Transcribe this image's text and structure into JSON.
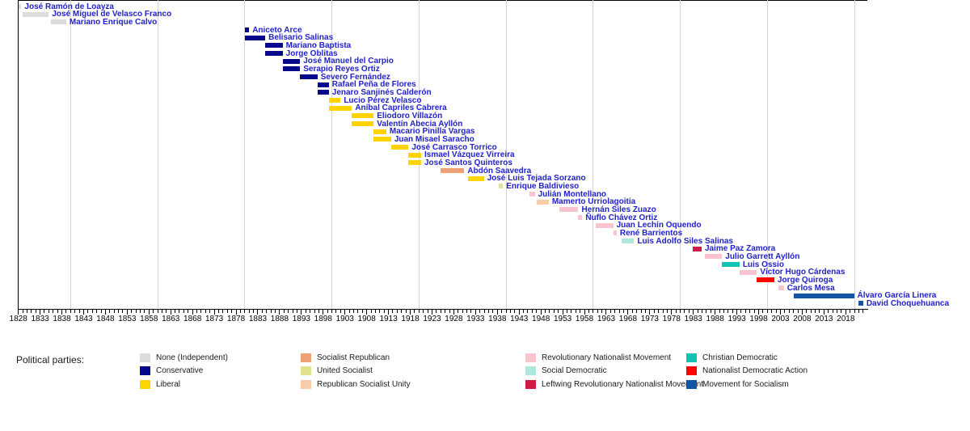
{
  "chart_data": {
    "type": "timeline",
    "x_axis": {
      "min_year": 1828,
      "tick_end_year": 2022,
      "tick_label_years": [
        1828,
        1833,
        1838,
        1843,
        1848,
        1853,
        1858,
        1863,
        1868,
        1873,
        1878,
        1883,
        1888,
        1893,
        1898,
        1903,
        1908,
        1913,
        1918,
        1923,
        1928,
        1933,
        1938,
        1943,
        1948,
        1953,
        1958,
        1963,
        1968,
        1973,
        1978,
        1983,
        1988,
        1993,
        1998,
        2003,
        2008,
        2013,
        2018
      ],
      "gridline_years": [
        1840,
        1860,
        1880,
        1900,
        1920,
        1940,
        1960,
        1980,
        2000,
        2020
      ],
      "grid": true
    },
    "parties": {
      "none": {
        "label": "None (Independent)",
        "color": "#DCDCDC"
      },
      "conservative": {
        "label": "Conservative",
        "color": "#08088C"
      },
      "liberal": {
        "label": "Liberal",
        "color": "#FFD403"
      },
      "socialist_republican": {
        "label": "Socialist Republican",
        "color": "#F0A076"
      },
      "united_socialist": {
        "label": "United Socialist",
        "color": "#E0E28C"
      },
      "republican_socialist_unity": {
        "label": "Republican Socialist Unity",
        "color": "#F8CCA8"
      },
      "revolutionary_nationalist_movement": {
        "label": "Revolutionary Nationalist Movement",
        "color": "#F9C3D0"
      },
      "social_democratic": {
        "label": "Social Democratic",
        "color": "#AEE7DC"
      },
      "leftwing_revolutionary_nationalist_movement": {
        "label": "Leftwing Revolutionary Nationalist Movement",
        "color": "#CE1A45"
      },
      "christian_democratic": {
        "label": "Christian Democratic",
        "color": "#12C3B4"
      },
      "nationalist_democratic_action": {
        "label": "Nationalist Democratic Action",
        "color": "#FB0400"
      },
      "movement_for_socialism": {
        "label": "Movement for Socialism",
        "color": "#1355A5"
      }
    },
    "people": [
      {
        "name": "José Ramón de Loayza",
        "party": "none",
        "start": 1828.0,
        "end": 1828.7
      },
      {
        "name": "José Miguel de Velasco Franco",
        "party": "none",
        "start": 1829.0,
        "end": 1835.0
      },
      {
        "name": "Mariano Enrique Calvo",
        "party": "none",
        "start": 1835.5,
        "end": 1839.0
      },
      {
        "name": "Aniceto Arce",
        "party": "conservative",
        "start": 1880.0,
        "end": 1881.0
      },
      {
        "name": "Belisario Salinas",
        "party": "conservative",
        "start": 1880.0,
        "end": 1884.7
      },
      {
        "name": "Mariano Baptista",
        "party": "conservative",
        "start": 1884.7,
        "end": 1888.7
      },
      {
        "name": "Jorge Oblitas",
        "party": "conservative",
        "start": 1884.7,
        "end": 1888.7
      },
      {
        "name": "José Manuel del Carpio",
        "party": "conservative",
        "start": 1888.7,
        "end": 1892.7
      },
      {
        "name": "Serapio Reyes Ortiz",
        "party": "conservative",
        "start": 1888.7,
        "end": 1892.7
      },
      {
        "name": "Severo Fernández",
        "party": "conservative",
        "start": 1892.7,
        "end": 1896.7
      },
      {
        "name": "Rafael Peña de Flores",
        "party": "conservative",
        "start": 1896.7,
        "end": 1899.3
      },
      {
        "name": "Jenaro Sanjinés Calderón",
        "party": "conservative",
        "start": 1896.7,
        "end": 1899.3
      },
      {
        "name": "Lucio Pérez Velasco",
        "party": "liberal",
        "start": 1899.3,
        "end": 1902.0
      },
      {
        "name": "Aníbal Capriles Cabrera",
        "party": "liberal",
        "start": 1899.3,
        "end": 1904.6
      },
      {
        "name": "Eliodoro Villazón",
        "party": "liberal",
        "start": 1904.6,
        "end": 1909.6
      },
      {
        "name": "Valentín Abecia Ayllón",
        "party": "liberal",
        "start": 1904.6,
        "end": 1909.6
      },
      {
        "name": "Macario Pinilla Vargas",
        "party": "liberal",
        "start": 1909.6,
        "end": 1912.5
      },
      {
        "name": "Juan Misael Saracho",
        "party": "liberal",
        "start": 1909.6,
        "end": 1913.6
      },
      {
        "name": "José Carrasco Torrico",
        "party": "liberal",
        "start": 1913.6,
        "end": 1917.6
      },
      {
        "name": "Ismael Vázquez Virreira",
        "party": "liberal",
        "start": 1917.6,
        "end": 1920.5
      },
      {
        "name": "José Santos Quinteros",
        "party": "liberal",
        "start": 1917.6,
        "end": 1920.5
      },
      {
        "name": "Abdón Saavedra",
        "party": "socialist_republican",
        "start": 1925.0,
        "end": 1930.4
      },
      {
        "name": "José Luis Tejada Sorzano",
        "party": "liberal",
        "start": 1931.2,
        "end": 1934.9
      },
      {
        "name": "Enrique Baldivieso",
        "party": "united_socialist",
        "start": 1938.3,
        "end": 1939.3
      },
      {
        "name": "Julián Montellano",
        "party": "revolutionary_nationalist_movement",
        "start": 1945.3,
        "end": 1946.6
      },
      {
        "name": "Mamerto Urriolagoitia",
        "party": "republican_socialist_unity",
        "start": 1947.0,
        "end": 1949.8
      },
      {
        "name": "Hernán Siles Zuazo",
        "party": "revolutionary_nationalist_movement",
        "start": 1952.3,
        "end": 1956.6
      },
      {
        "name": "Ñuflo Chávez Ortiz",
        "party": "revolutionary_nationalist_movement",
        "start": 1956.6,
        "end": 1957.5
      },
      {
        "name": "Juan Lechín Oquendo",
        "party": "revolutionary_nationalist_movement",
        "start": 1960.6,
        "end": 1964.6
      },
      {
        "name": "René Barrientos",
        "party": "revolutionary_nationalist_movement",
        "start": 1964.6,
        "end": 1965.4
      },
      {
        "name": "Luis Adolfo Siles Salinas",
        "party": "social_democratic",
        "start": 1966.6,
        "end": 1969.4
      },
      {
        "name": "Jaime Paz Zamora",
        "party": "leftwing_revolutionary_nationalist_movement",
        "start": 1982.8,
        "end": 1984.9
      },
      {
        "name": "Julio Garrett Ayllón",
        "party": "revolutionary_nationalist_movement",
        "start": 1985.6,
        "end": 1989.6
      },
      {
        "name": "Luis Ossio",
        "party": "christian_democratic",
        "start": 1989.6,
        "end": 1993.6
      },
      {
        "name": "Víctor Hugo Cárdenas",
        "party": "revolutionary_nationalist_movement",
        "start": 1993.6,
        "end": 1997.6
      },
      {
        "name": "Jorge Quiroga",
        "party": "nationalist_democratic_action",
        "start": 1997.6,
        "end": 2001.6
      },
      {
        "name": "Carlos Mesa",
        "party": "revolutionary_nationalist_movement",
        "start": 2002.6,
        "end": 2003.8
      },
      {
        "name": "Álvaro García Linera",
        "party": "movement_for_socialism",
        "start": 2006.1,
        "end": 2019.9
      },
      {
        "name": "David Choquehuanca",
        "party": "movement_for_socialism",
        "start": 2020.9,
        "end": 2022.0
      }
    ],
    "legend": {
      "title": "Political parties:",
      "columns": [
        [
          "none",
          "conservative",
          "liberal"
        ],
        [
          "socialist_republican",
          "united_socialist",
          "republican_socialist_unity"
        ],
        [
          "revolutionary_nationalist_movement",
          "social_democratic",
          "leftwing_revolutionary_nationalist_movement"
        ],
        [
          "christian_democratic",
          "nationalist_democratic_action",
          "movement_for_socialism"
        ]
      ]
    }
  }
}
